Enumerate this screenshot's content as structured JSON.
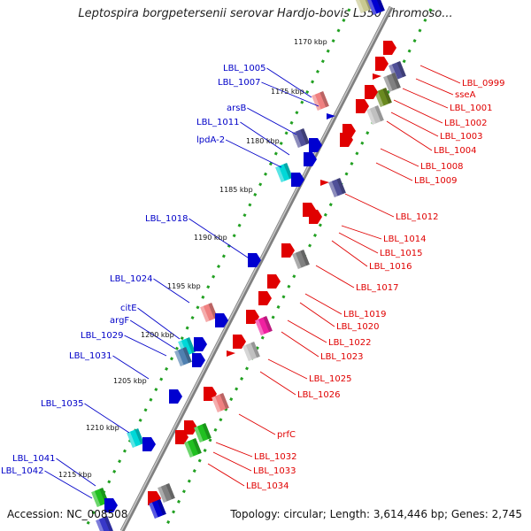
{
  "title": "Leptospira borgpetersenii serovar Hardjo-bovis L550 chromoso...",
  "accession": "Accession: NC_008508",
  "topology": "Topology: circular; Length: 3,614,446 bp; Genes: 2,745",
  "colors": {
    "left_label": "#0000c8",
    "right_label": "#e00000",
    "backbone": "#808080",
    "dots": "#22a022"
  },
  "kbp_labels": [
    "1170 kbp",
    "1175 kbp",
    "1180 kbp",
    "1185 kbp",
    "1190 kbp",
    "1195 kbp",
    "1200 kbp",
    "1205 kbp",
    "1210 kbp",
    "1215 kbp"
  ],
  "left_genes": [
    "LBL_1005",
    "LBL_1007",
    "arsB",
    "LBL_1011",
    "lpdA-2",
    "LBL_1018",
    "LBL_1024",
    "citE",
    "argF",
    "LBL_1029",
    "LBL_1031",
    "LBL_1035",
    "LBL_1041",
    "LBL_1042"
  ],
  "right_genes": [
    "LBL_0999",
    "sseA",
    "LBL_1001",
    "LBL_1002",
    "LBL_1003",
    "LBL_1004",
    "LBL_1008",
    "LBL_1009",
    "LBL_1012",
    "LBL_1014",
    "LBL_1015",
    "LBL_1016",
    "LBL_1017",
    "LBL_1019",
    "LBL_1020",
    "LBL_1022",
    "LBL_1023",
    "LBL_1025",
    "LBL_1026",
    "prfC",
    "LBL_1032",
    "LBL_1033",
    "LBL_1034"
  ]
}
